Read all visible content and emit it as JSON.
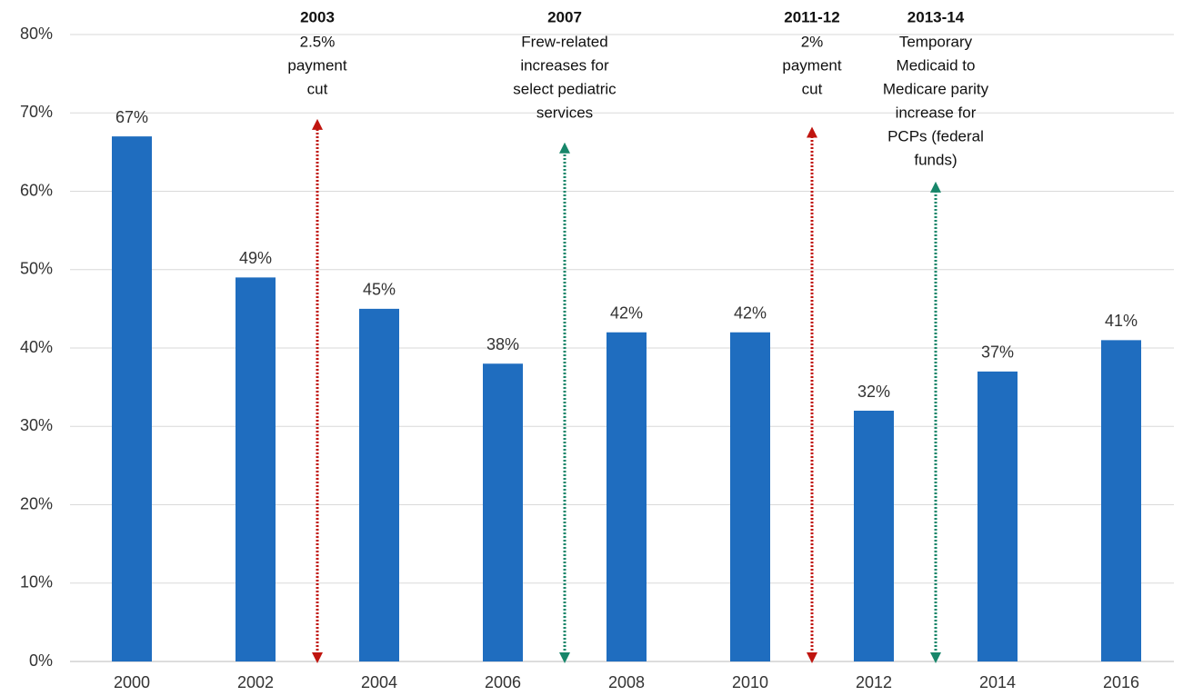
{
  "chart_data": {
    "type": "bar",
    "categories": [
      "2000",
      "2002",
      "2004",
      "2006",
      "2008",
      "2010",
      "2012",
      "2014",
      "2016"
    ],
    "values": [
      67,
      49,
      45,
      38,
      42,
      42,
      32,
      37,
      41
    ],
    "value_labels": [
      "67%",
      "49%",
      "45%",
      "38%",
      "42%",
      "42%",
      "32%",
      "37%",
      "41%"
    ],
    "color": "#1f6dbf",
    "ylim": [
      0,
      80
    ],
    "yticks": [
      {
        "value": 0,
        "label": "0%"
      },
      {
        "value": 10,
        "label": "10%"
      },
      {
        "value": 20,
        "label": "20%"
      },
      {
        "value": 30,
        "label": "30%"
      },
      {
        "value": 40,
        "label": "40%"
      },
      {
        "value": 50,
        "label": "50%"
      },
      {
        "value": 60,
        "label": "60%"
      },
      {
        "value": 70,
        "label": "70%"
      },
      {
        "value": 80,
        "label": "80%"
      }
    ],
    "grid": true,
    "annotations": [
      {
        "x": 2003,
        "y": 69,
        "color": "#c0150f",
        "title": "2003",
        "lines": [
          "2.5%",
          "payment",
          "cut"
        ]
      },
      {
        "x": 2007,
        "y": 66,
        "color": "#17866a",
        "title": "2007",
        "lines": [
          "Frew-related",
          "increases for",
          "select pediatric",
          "services"
        ]
      },
      {
        "x": 2011,
        "y": 68,
        "color": "#c0150f",
        "title": "2011-12",
        "lines": [
          "2%",
          "payment",
          "cut"
        ]
      },
      {
        "x": 2013,
        "y": 61,
        "color": "#17866a",
        "title": "2013-14",
        "lines": [
          "Temporary",
          "Medicaid to",
          "Medicare parity",
          "increase for",
          "PCPs (federal",
          "funds)"
        ]
      }
    ]
  }
}
